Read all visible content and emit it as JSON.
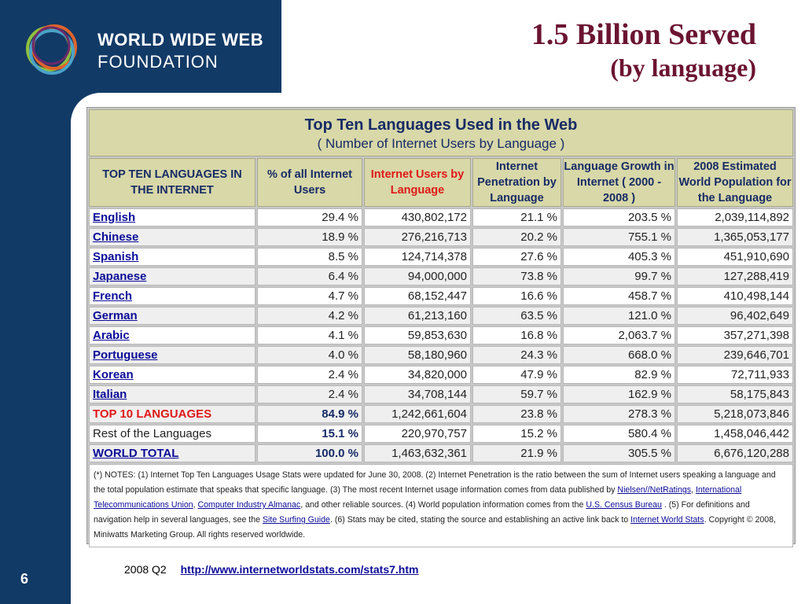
{
  "brand": {
    "line1": "WORLD WIDE WEB",
    "line2": "FOUNDATION",
    "ring_colors": [
      "#8fbf3f",
      "#e0632a",
      "#4aa3c8",
      "#6b2a6b"
    ]
  },
  "slide": {
    "title": "1.5 Billion Served",
    "subtitle": "(by language)",
    "page_number": "6"
  },
  "footer": {
    "quarter": "2008 Q2",
    "link": "http://www.internetworldstats.com/stats7.htm"
  },
  "table": {
    "title": "Top Ten Languages Used in the Web",
    "subtitle": "( Number of Internet Users by Language )",
    "headers": [
      "TOP TEN LANGUAGES IN THE INTERNET",
      "% of all Internet Users",
      "Internet Users by Language",
      "Internet Penetration by Language",
      "Language Growth in Internet ( 2000 - 2008 )",
      "2008 Estimated World Population for the Language"
    ],
    "rows": [
      [
        "English",
        "29.4 %",
        "430,802,172",
        "21.1 %",
        "203.5 %",
        "2,039,114,892"
      ],
      [
        "Chinese",
        "18.9 %",
        "276,216,713",
        "20.2 %",
        "755.1 %",
        "1,365,053,177"
      ],
      [
        "Spanish",
        "8.5 %",
        "124,714,378",
        "27.6 %",
        "405.3 %",
        "451,910,690"
      ],
      [
        "Japanese",
        "6.4 %",
        "94,000,000",
        "73.8 %",
        "99.7 %",
        "127,288,419"
      ],
      [
        "French",
        "4.7 %",
        "68,152,447",
        "16.6 %",
        "458.7 %",
        "410,498,144"
      ],
      [
        "German",
        "4.2 %",
        "61,213,160",
        "63.5 %",
        "121.0 %",
        "96,402,649"
      ],
      [
        "Arabic",
        "4.1 %",
        "59,853,630",
        "16.8 %",
        "2,063.7 %",
        "357,271,398"
      ],
      [
        "Portuguese",
        "4.0 %",
        "58,180,960",
        "24.3 %",
        "668.0 %",
        "239,646,701"
      ],
      [
        "Korean",
        "2.4 %",
        "34,820,000",
        "47.9 %",
        "82.9 %",
        "72,711,933"
      ],
      [
        "Italian",
        "2.4 %",
        "34,708,144",
        "59.7 %",
        "162.9 %",
        "58,175,843"
      ]
    ],
    "top10": [
      "TOP 10 LANGUAGES",
      "84.9 %",
      "1,242,661,604",
      "23.8 %",
      "278.3 %",
      "5,218,073,846"
    ],
    "rest": [
      "Rest of the Languages",
      "15.1 %",
      "220,970,757",
      "15.2 %",
      "580.4 %",
      "1,458,046,442"
    ],
    "total": [
      "WORLD TOTAL",
      "100.0 %",
      "1,463,632,361",
      "21.9 %",
      "305.5 %",
      "6,676,120,288"
    ],
    "notes": {
      "p1": "(*) NOTES: (1) Internet Top Ten Languages Usage Stats were updated for June 30, 2008. (2) Internet Penetration is the ratio between the sum of Internet users speaking a language and the total population estimate that speaks that specific language. (3) The most recent Internet usage information comes from data published by ",
      "link1": "Nielsen//NetRatings",
      "sep1": ", ",
      "link2": "International Telecommunications Union",
      "sep2": ", ",
      "link3": "Computer Industry Almanac",
      "p2": ", and other reliable sources. (4) World population information comes from the ",
      "link4": "U.S. Census Bureau",
      "p3": " . (5) For definitions and navigation help in several languages, see the ",
      "link5": "Site Surfing Guide",
      "p4": ". (6) Stats may be cited, stating the source and establishing an active link back to ",
      "link6": "Internet World Stats",
      "p5": ". Copyright © 2008, Miniwatts Marketing Group. All rights reserved worldwide."
    }
  }
}
